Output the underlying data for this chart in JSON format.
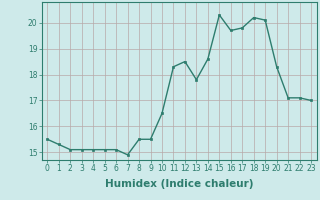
{
  "x": [
    0,
    1,
    2,
    3,
    4,
    5,
    6,
    7,
    8,
    9,
    10,
    11,
    12,
    13,
    14,
    15,
    16,
    17,
    18,
    19,
    20,
    21,
    22,
    23
  ],
  "y": [
    15.5,
    15.3,
    15.1,
    15.1,
    15.1,
    15.1,
    15.1,
    14.9,
    15.5,
    15.5,
    16.5,
    18.3,
    18.5,
    17.8,
    18.6,
    20.3,
    19.7,
    19.8,
    20.2,
    20.1,
    18.3,
    17.1,
    17.1,
    17.0
  ],
  "line_color": "#2e7d6e",
  "marker": "s",
  "markersize": 2.0,
  "linewidth": 1.0,
  "background_color": "#ceeaea",
  "grid_color": "#b8a8a8",
  "xlabel": "Humidex (Indice chaleur)",
  "ylabel": "",
  "xlim": [
    -0.5,
    23.5
  ],
  "ylim": [
    14.7,
    20.8
  ],
  "yticks": [
    15,
    16,
    17,
    18,
    19,
    20
  ],
  "xticks": [
    0,
    1,
    2,
    3,
    4,
    5,
    6,
    7,
    8,
    9,
    10,
    11,
    12,
    13,
    14,
    15,
    16,
    17,
    18,
    19,
    20,
    21,
    22,
    23
  ],
  "tick_color": "#2e7d6e",
  "tick_fontsize": 5.5,
  "xlabel_fontsize": 7.5,
  "axis_color": "#2e7d6e"
}
